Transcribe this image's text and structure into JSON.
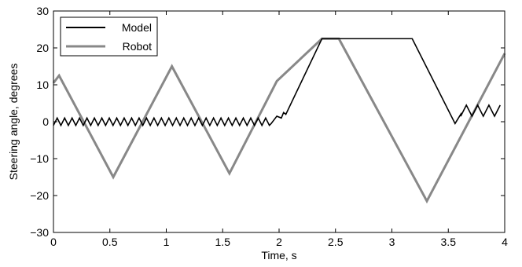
{
  "chart_data": {
    "type": "line",
    "xlabel": "Time, s",
    "ylabel": "Steering angle, degrees",
    "xlim": [
      0,
      4
    ],
    "ylim": [
      -30,
      30
    ],
    "x_ticks": [
      "0",
      "0.5",
      "1",
      "1.5",
      "2",
      "2.5",
      "3",
      "3.5",
      "4"
    ],
    "y_ticks": [
      "−30",
      "−20",
      "−10",
      "0",
      "10",
      "20",
      "30"
    ],
    "grid": false,
    "legend_position": "top-left",
    "series": [
      {
        "name": "Model",
        "color": "#000000",
        "zigzag_segments": [
          {
            "x_start": 0.0,
            "x_end": 1.93,
            "low": -1.0,
            "high": 1.0,
            "period": 0.066
          },
          {
            "x_start": 3.61,
            "x_end": 4.0,
            "low": 1.5,
            "high": 4.5,
            "period": 0.1
          }
        ],
        "x": [
          1.93,
          1.98,
          2.02,
          2.04,
          2.06,
          2.38,
          3.18,
          3.56,
          3.61
        ],
        "y": [
          -0.5,
          1.5,
          1.0,
          2.5,
          2.0,
          22.5,
          22.5,
          -0.5,
          2.0
        ]
      },
      {
        "name": "Robot",
        "color": "#888888",
        "x": [
          0.0,
          0.05,
          0.53,
          1.05,
          1.56,
          1.98,
          2.38,
          2.53,
          3.31,
          4.0
        ],
        "y": [
          10.5,
          12.5,
          -15.0,
          15.0,
          -14.0,
          11.0,
          22.5,
          22.5,
          -21.5,
          18.5
        ]
      }
    ]
  }
}
